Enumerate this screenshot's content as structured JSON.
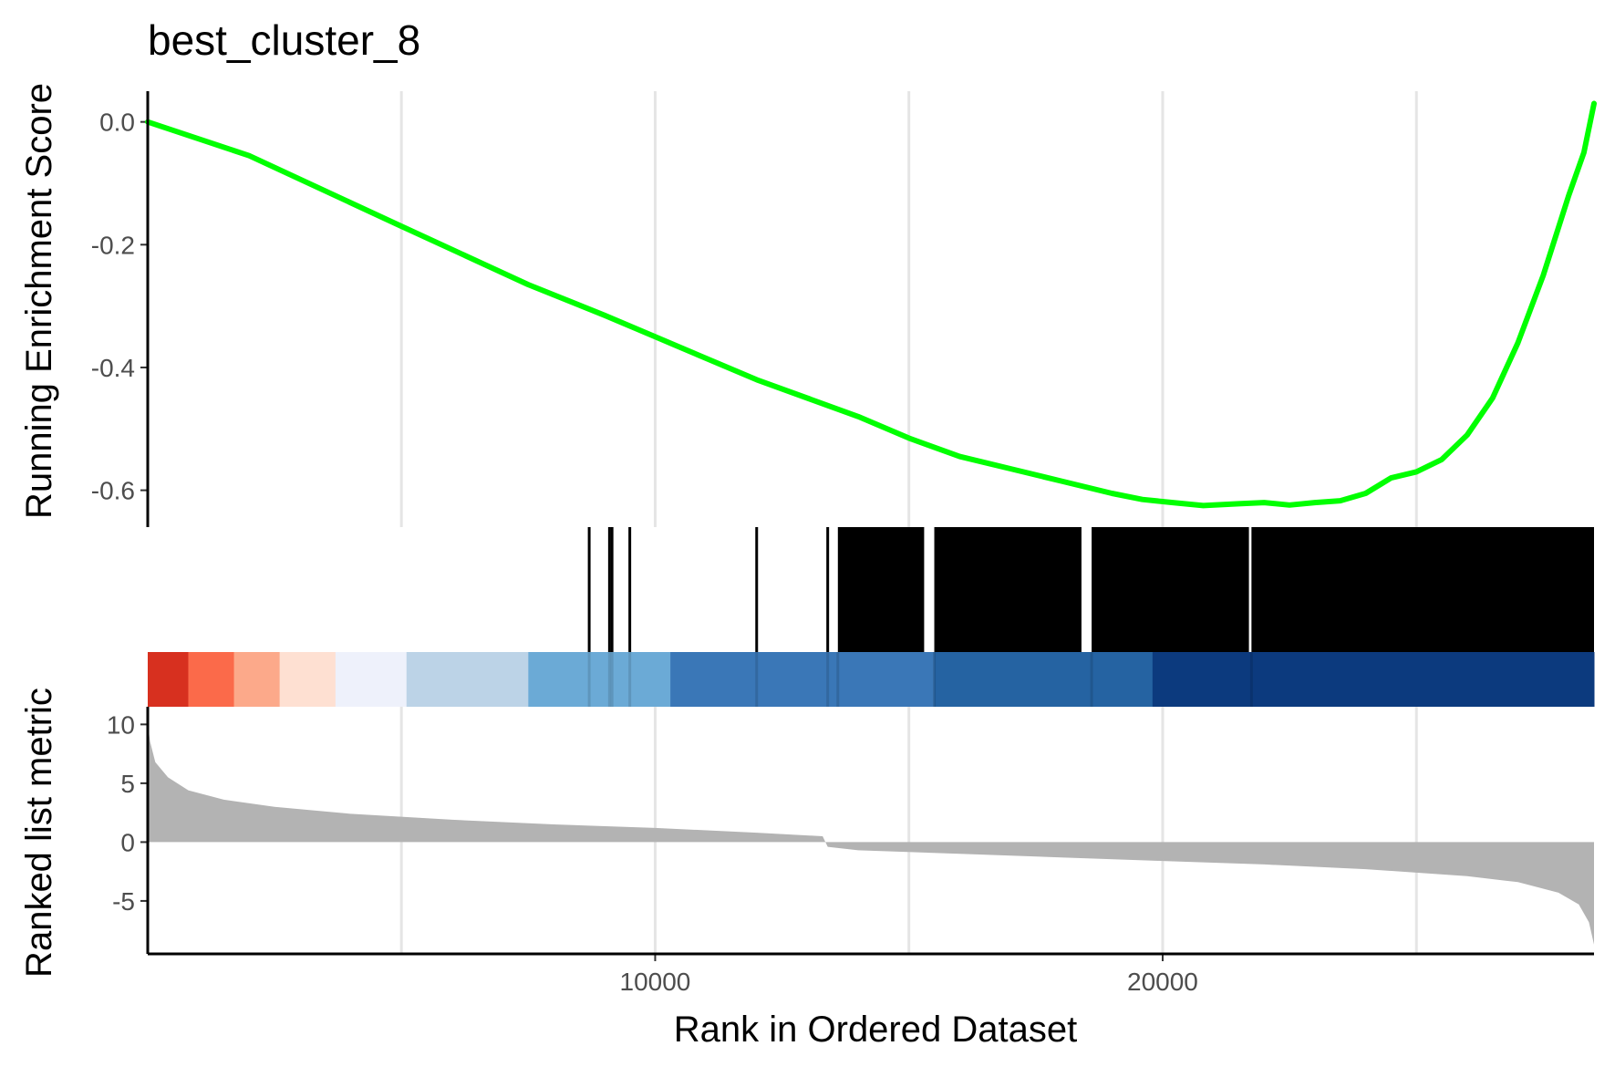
{
  "chart_data": {
    "type": "line",
    "title": "best_cluster_8",
    "xlabel": "Rank in Ordered Dataset",
    "xlim": [
      1,
      28500
    ],
    "x_ticks": [
      "10000",
      "20000"
    ],
    "x_tick_values": [
      10000,
      20000
    ],
    "x_grid_values": [
      5000,
      10000,
      15000,
      20000,
      25000
    ],
    "grid": "vertical major lines",
    "panels": [
      {
        "name": "running_enrichment",
        "ylabel": "Running Enrichment Score",
        "ylim": [
          -0.66,
          0.05
        ],
        "y_ticks": [
          "0.0",
          "-0.2",
          "-0.4",
          "-0.6"
        ],
        "y_tick_values": [
          0.0,
          -0.2,
          -0.4,
          -0.6
        ],
        "line_color": "#00FF00",
        "points": [
          [
            1,
            0.0
          ],
          [
            2000,
            -0.055
          ],
          [
            5000,
            -0.17
          ],
          [
            7500,
            -0.265
          ],
          [
            9000,
            -0.315
          ],
          [
            10000,
            -0.35
          ],
          [
            12000,
            -0.42
          ],
          [
            14000,
            -0.48
          ],
          [
            15000,
            -0.515
          ],
          [
            16000,
            -0.545
          ],
          [
            17000,
            -0.565
          ],
          [
            18000,
            -0.585
          ],
          [
            19000,
            -0.605
          ],
          [
            19600,
            -0.615
          ],
          [
            20200,
            -0.62
          ],
          [
            20800,
            -0.625
          ],
          [
            21500,
            -0.622
          ],
          [
            22000,
            -0.62
          ],
          [
            22500,
            -0.624
          ],
          [
            23000,
            -0.62
          ],
          [
            23500,
            -0.617
          ],
          [
            24000,
            -0.605
          ],
          [
            24500,
            -0.58
          ],
          [
            25000,
            -0.57
          ],
          [
            25500,
            -0.55
          ],
          [
            26000,
            -0.51
          ],
          [
            26500,
            -0.45
          ],
          [
            27000,
            -0.36
          ],
          [
            27500,
            -0.25
          ],
          [
            28000,
            -0.12
          ],
          [
            28300,
            -0.05
          ],
          [
            28500,
            0.03
          ]
        ]
      },
      {
        "name": "hits",
        "type": "barcode",
        "color": "#000000",
        "isolated_hits": [
          8700,
          9100,
          9150,
          9500,
          12000,
          13400
        ],
        "dense_hit_ranges": [
          [
            13600,
            15300
          ],
          [
            15500,
            18400
          ],
          [
            18600,
            21700
          ],
          [
            21750,
            28500
          ]
        ]
      },
      {
        "name": "color_band",
        "type": "heatmap",
        "segments": [
          {
            "from": 1,
            "to": 800,
            "color": "#D7301F"
          },
          {
            "from": 800,
            "to": 1700,
            "color": "#FB6A4A"
          },
          {
            "from": 1700,
            "to": 2600,
            "color": "#FCA98A"
          },
          {
            "from": 2600,
            "to": 3700,
            "color": "#FEE0D2"
          },
          {
            "from": 3700,
            "to": 5100,
            "color": "#EEF1FB"
          },
          {
            "from": 5100,
            "to": 7500,
            "color": "#BCD3E7"
          },
          {
            "from": 7500,
            "to": 10300,
            "color": "#6BAAD6"
          },
          {
            "from": 10300,
            "to": 15500,
            "color": "#3A77B7"
          },
          {
            "from": 15500,
            "to": 19800,
            "color": "#2563A2"
          },
          {
            "from": 19800,
            "to": 28500,
            "color": "#0C3A7E"
          }
        ]
      },
      {
        "name": "ranked_list_metric",
        "type": "area",
        "ylabel": "Ranked list metric",
        "ylim": [
          -9.5,
          11.5
        ],
        "y_ticks": [
          "10",
          "5",
          "0",
          "-5"
        ],
        "y_tick_values": [
          10,
          5,
          0,
          -5
        ],
        "fill_color": "#B3B3B3",
        "points": [
          [
            1,
            10.0
          ],
          [
            50,
            8.5
          ],
          [
            150,
            6.8
          ],
          [
            400,
            5.5
          ],
          [
            800,
            4.4
          ],
          [
            1500,
            3.6
          ],
          [
            2500,
            3.0
          ],
          [
            4000,
            2.4
          ],
          [
            6000,
            1.9
          ],
          [
            8000,
            1.5
          ],
          [
            10000,
            1.2
          ],
          [
            12000,
            0.8
          ],
          [
            13300,
            0.5
          ],
          [
            13400,
            -0.4
          ],
          [
            14000,
            -0.7
          ],
          [
            16000,
            -1.0
          ],
          [
            18000,
            -1.3
          ],
          [
            20000,
            -1.6
          ],
          [
            22000,
            -1.9
          ],
          [
            24000,
            -2.3
          ],
          [
            26000,
            -2.9
          ],
          [
            27000,
            -3.4
          ],
          [
            27800,
            -4.3
          ],
          [
            28200,
            -5.3
          ],
          [
            28400,
            -6.8
          ],
          [
            28500,
            -8.7
          ]
        ]
      }
    ]
  }
}
